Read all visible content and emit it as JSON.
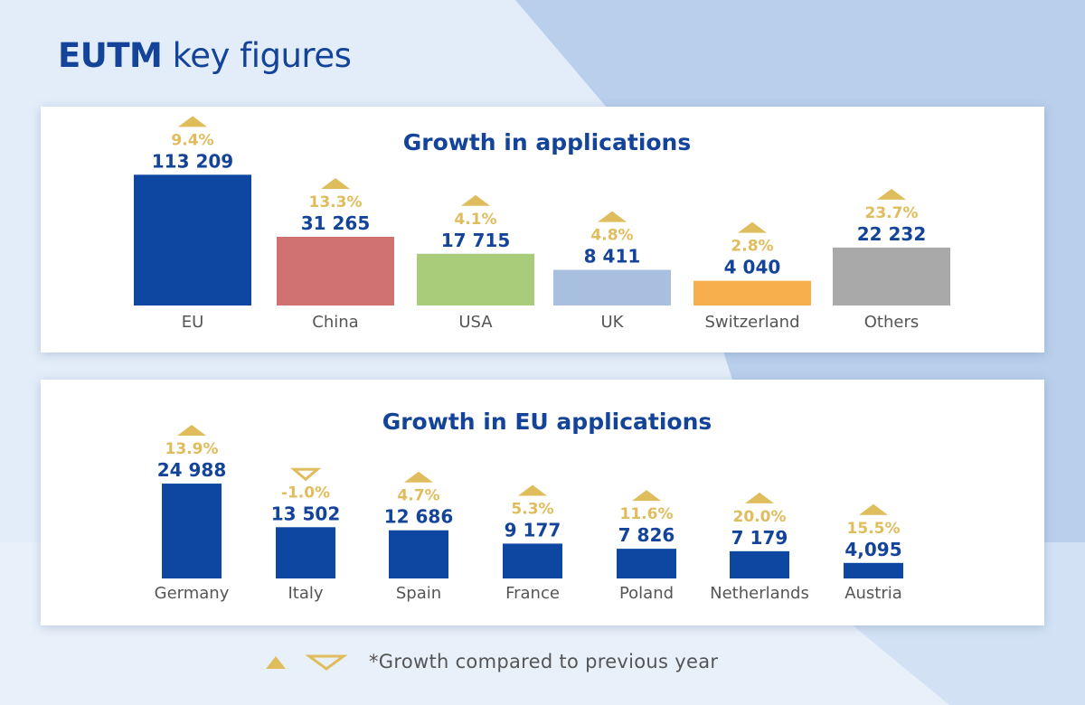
{
  "title": {
    "bold": "EUTM",
    "rest": " key figures"
  },
  "colors": {
    "gold": "#e0bd5c",
    "navy": "#14449a",
    "label": "#555555"
  },
  "chart_data": [
    {
      "type": "bar",
      "title": "Growth in applications",
      "categories": [
        "EU",
        "China",
        "USA",
        "UK",
        "Switzerland",
        "Others"
      ],
      "values": [
        113209,
        31265,
        17715,
        8411,
        4040,
        22232
      ],
      "value_labels": [
        "113 209",
        "31 265",
        "17 715",
        "8 411",
        "4 040",
        "22 232"
      ],
      "growth_labels": [
        "9.4%",
        "13.3%",
        "4.1%",
        "4.8%",
        "2.8%",
        "23.7%"
      ],
      "growth_direction": [
        "up",
        "up",
        "up",
        "up",
        "up",
        "up"
      ],
      "colors": [
        "#0e47a1",
        "#d07272",
        "#a8cc7a",
        "#a9bfe0",
        "#f7ae4c",
        "#a9a9a9"
      ]
    },
    {
      "type": "bar",
      "title": "Growth in EU applications",
      "categories": [
        "Germany",
        "Italy",
        "Spain",
        "France",
        "Poland",
        "Netherlands",
        "Austria"
      ],
      "values": [
        24988,
        13502,
        12686,
        9177,
        7826,
        7179,
        4095
      ],
      "value_labels": [
        "24 988",
        "13 502",
        "12 686",
        "9 177",
        "7 826",
        "7 179",
        "4,095"
      ],
      "growth_labels": [
        "13.9%",
        "-1.0%",
        "4.7%",
        "5.3%",
        "11.6%",
        "20.0%",
        "15.5%"
      ],
      "growth_direction": [
        "up",
        "down",
        "up",
        "up",
        "up",
        "up",
        "up"
      ],
      "colors": [
        "#0e47a1",
        "#0e47a1",
        "#0e47a1",
        "#0e47a1",
        "#0e47a1",
        "#0e47a1",
        "#0e47a1"
      ]
    }
  ],
  "legend": {
    "text": "*Growth compared to previous year",
    "icons": [
      "triangle-up-icon",
      "triangle-down-icon"
    ]
  }
}
